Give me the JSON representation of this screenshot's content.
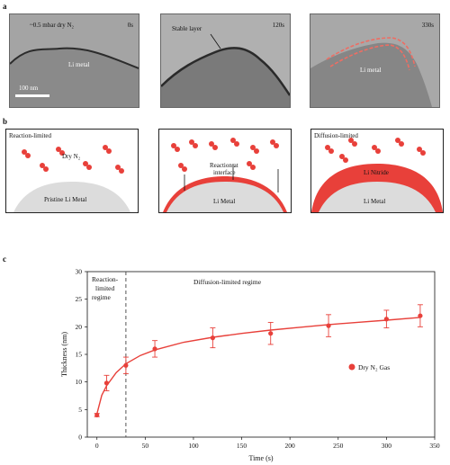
{
  "panels": {
    "a": "a",
    "b": "b",
    "c": "c"
  },
  "tem": {
    "label_pressure": "~0.5 mbar dry N₂",
    "t0": "0s",
    "t1": "120s",
    "t2": "330s",
    "li_metal": "Li metal",
    "stable_layer": "Stable layer",
    "scale": "100 nm"
  },
  "schematic": {
    "reaction_limited": "Reaction-limited",
    "dry_n2": "Dry N₂",
    "pristine": "Pristine Li Metal",
    "reaction_at": "Reaction at",
    "interface": "interface",
    "li_metal": "Li Metal",
    "diffusion_limited": "Diffusion-limited",
    "li_nitride": "Li Nitride",
    "li_metal_3": "Li Metal"
  },
  "colors": {
    "red": "#e8403a",
    "red_light": "#ee6d63",
    "gray": "#dcdcdc"
  },
  "chart_data": {
    "type": "scatter",
    "xlabel": "Time (s)",
    "ylabel": "Thickness (nm)",
    "xlim": [
      -10,
      350
    ],
    "ylim": [
      0,
      30
    ],
    "xticks": [
      0,
      50,
      100,
      150,
      200,
      250,
      300,
      350
    ],
    "yticks": [
      0,
      5,
      10,
      15,
      20,
      25,
      30
    ],
    "series": [
      {
        "name": "Dry N₂ Gas",
        "points": [
          {
            "x": 0,
            "y": 4,
            "err": 0.3
          },
          {
            "x": 10,
            "y": 9.8,
            "err": 1.4
          },
          {
            "x": 30,
            "y": 13,
            "err": 1.5
          },
          {
            "x": 60,
            "y": 16,
            "err": 1.5
          },
          {
            "x": 120,
            "y": 18,
            "err": 1.8
          },
          {
            "x": 180,
            "y": 18.8,
            "err": 2
          },
          {
            "x": 240,
            "y": 20.2,
            "err": 2
          },
          {
            "x": 300,
            "y": 21.4,
            "err": 1.6
          },
          {
            "x": 335,
            "y": 22,
            "err": 2
          }
        ]
      }
    ],
    "fit_curve": [
      [
        0,
        4.2
      ],
      [
        5,
        7.6
      ],
      [
        10,
        9.3
      ],
      [
        20,
        11.7
      ],
      [
        30,
        13.3
      ],
      [
        45,
        14.8
      ],
      [
        60,
        15.8
      ],
      [
        90,
        17.2
      ],
      [
        120,
        18.1
      ],
      [
        150,
        18.8
      ],
      [
        180,
        19.4
      ],
      [
        210,
        19.9
      ],
      [
        240,
        20.4
      ],
      [
        270,
        20.8
      ],
      [
        300,
        21.2
      ],
      [
        335,
        21.7
      ]
    ],
    "divider_x": 30,
    "annotations": {
      "regime1_line1": "Reaction-",
      "regime1_line2": "limited",
      "regime1_line3": "regime",
      "regime2": "Diffusion-limited regime"
    },
    "legend_position": "right"
  }
}
